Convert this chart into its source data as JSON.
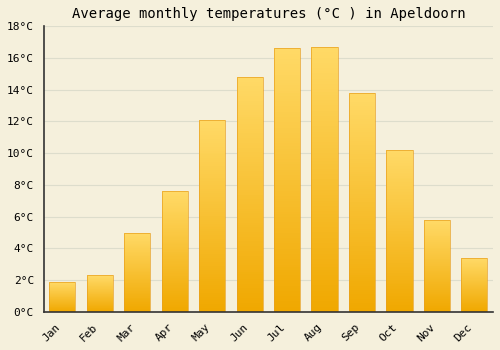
{
  "title": "Average monthly temperatures (°C ) in Apeldoorn",
  "months": [
    "Jan",
    "Feb",
    "Mar",
    "Apr",
    "May",
    "Jun",
    "Jul",
    "Aug",
    "Sep",
    "Oct",
    "Nov",
    "Dec"
  ],
  "values": [
    1.9,
    2.3,
    5.0,
    7.6,
    12.1,
    14.8,
    16.6,
    16.7,
    13.8,
    10.2,
    5.8,
    3.4
  ],
  "bar_color_bottom": "#F0A800",
  "bar_color_top": "#FFD966",
  "bar_edge_color": "#E8A020",
  "background_color": "#F5F0DC",
  "plot_bg_color": "#F5F0DC",
  "grid_color": "#DDDDCC",
  "title_fontsize": 10,
  "tick_fontsize": 8,
  "ylim": [
    0,
    18
  ],
  "yticks": [
    0,
    2,
    4,
    6,
    8,
    10,
    12,
    14,
    16,
    18
  ],
  "ytick_labels": [
    "0°C",
    "2°C",
    "4°C",
    "6°C",
    "8°C",
    "10°C",
    "12°C",
    "14°C",
    "16°C",
    "18°C"
  ]
}
